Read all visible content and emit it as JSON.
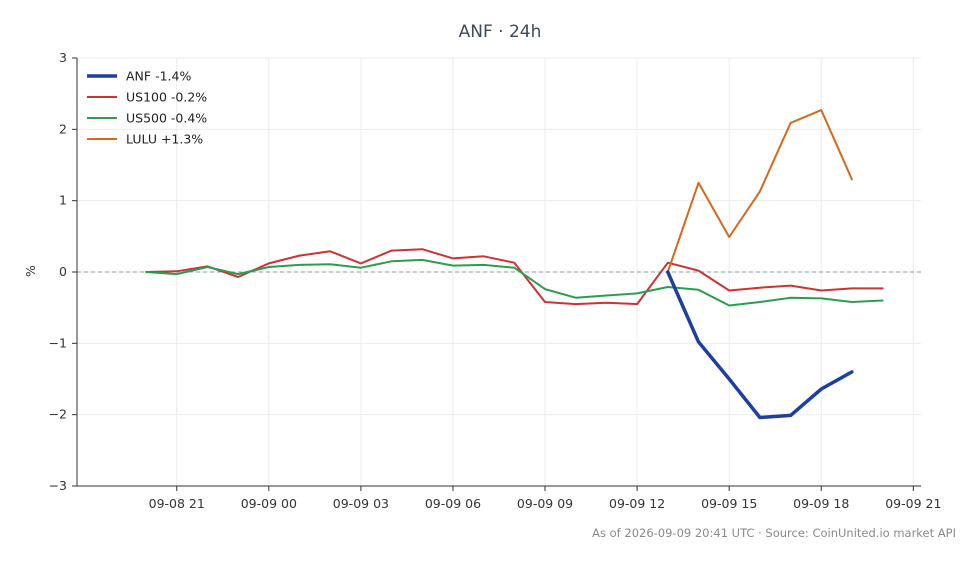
{
  "chart_data": {
    "type": "line",
    "title": "ANF · 24h",
    "xlabel": "",
    "ylabel": "%",
    "x_start": "2026-09-08T19:00",
    "x_tick_labels": [
      "09-08 21",
      "09-09 00",
      "09-09 03",
      "09-09 06",
      "09-09 09",
      "09-09 12",
      "09-09 15",
      "09-09 18",
      "09-09 21"
    ],
    "x_ticks": [
      "2026-09-08T21:00",
      "2026-09-09T00:00",
      "2026-09-09T03:00",
      "2026-09-09T06:00",
      "2026-09-09T09:00",
      "2026-09-09T12:00",
      "2026-09-09T15:00",
      "2026-09-09T18:00",
      "2026-09-09T21:00"
    ],
    "xlim": [
      "2026-09-08T17:45",
      "2026-09-09T21:15"
    ],
    "ylim": [
      -3,
      3
    ],
    "y_ticks": [
      -3,
      -2,
      -1,
      0,
      1,
      2,
      3
    ],
    "y_tick_labels": [
      "−3",
      "−2",
      "−1",
      "0",
      "1",
      "2",
      "3"
    ],
    "grid": true,
    "zero_line": true,
    "legend_position": "top-left",
    "series": [
      {
        "name": "ANF -1.4%",
        "color": "#1f3f9e",
        "width": 3.5,
        "x": [
          "2026-09-09T13:00",
          "2026-09-09T14:00",
          "2026-09-09T15:00",
          "2026-09-09T16:00",
          "2026-09-09T17:00",
          "2026-09-09T18:00",
          "2026-09-09T19:00"
        ],
        "values": [
          0.0,
          -0.98,
          -1.5,
          -2.04,
          -2.01,
          -1.64,
          -1.4
        ]
      },
      {
        "name": "US100 -0.2%",
        "color": "#cc3333",
        "width": 2,
        "x": [
          "2026-09-08T20:00",
          "2026-09-08T21:00",
          "2026-09-08T22:00",
          "2026-09-08T23:00",
          "2026-09-09T00:00",
          "2026-09-09T01:00",
          "2026-09-09T02:00",
          "2026-09-09T03:00",
          "2026-09-09T04:00",
          "2026-09-09T05:00",
          "2026-09-09T06:00",
          "2026-09-09T07:00",
          "2026-09-09T08:00",
          "2026-09-09T09:00",
          "2026-09-09T10:00",
          "2026-09-09T11:00",
          "2026-09-09T12:00",
          "2026-09-09T13:00",
          "2026-09-09T14:00",
          "2026-09-09T15:00",
          "2026-09-09T16:00",
          "2026-09-09T17:00",
          "2026-09-09T18:00",
          "2026-09-09T19:00",
          "2026-09-09T20:00"
        ],
        "values": [
          0.0,
          0.01,
          0.08,
          -0.07,
          0.12,
          0.23,
          0.29,
          0.12,
          0.3,
          0.32,
          0.19,
          0.22,
          0.13,
          -0.42,
          -0.45,
          -0.43,
          -0.45,
          0.13,
          0.02,
          -0.26,
          -0.22,
          -0.19,
          -0.26,
          -0.23,
          -0.23
        ]
      },
      {
        "name": "US500 -0.4%",
        "color": "#2e9c4f",
        "width": 2,
        "x": [
          "2026-09-08T20:00",
          "2026-09-08T21:00",
          "2026-09-08T22:00",
          "2026-09-08T23:00",
          "2026-09-09T00:00",
          "2026-09-09T01:00",
          "2026-09-09T02:00",
          "2026-09-09T03:00",
          "2026-09-09T04:00",
          "2026-09-09T05:00",
          "2026-09-09T06:00",
          "2026-09-09T07:00",
          "2026-09-09T08:00",
          "2026-09-09T09:00",
          "2026-09-09T10:00",
          "2026-09-09T11:00",
          "2026-09-09T12:00",
          "2026-09-09T13:00",
          "2026-09-09T14:00",
          "2026-09-09T15:00",
          "2026-09-09T16:00",
          "2026-09-09T17:00",
          "2026-09-09T18:00",
          "2026-09-09T19:00",
          "2026-09-09T20:00"
        ],
        "values": [
          0.0,
          -0.03,
          0.07,
          -0.03,
          0.07,
          0.1,
          0.11,
          0.06,
          0.15,
          0.17,
          0.09,
          0.1,
          0.06,
          -0.24,
          -0.36,
          -0.33,
          -0.3,
          -0.21,
          -0.25,
          -0.47,
          -0.42,
          -0.36,
          -0.37,
          -0.42,
          -0.4
        ]
      },
      {
        "name": "LULU +1.3%",
        "color": "#d2691e",
        "width": 2,
        "x": [
          "2026-09-09T13:00",
          "2026-09-09T14:00",
          "2026-09-09T15:00",
          "2026-09-09T16:00",
          "2026-09-09T17:00",
          "2026-09-09T18:00",
          "2026-09-09T19:00"
        ],
        "values": [
          0.0,
          1.25,
          0.49,
          1.13,
          2.09,
          2.27,
          1.3
        ]
      }
    ]
  },
  "footer": {
    "text": "As of 2026-09-09 20:41 UTC · Source: CoinUnited.io market API"
  }
}
